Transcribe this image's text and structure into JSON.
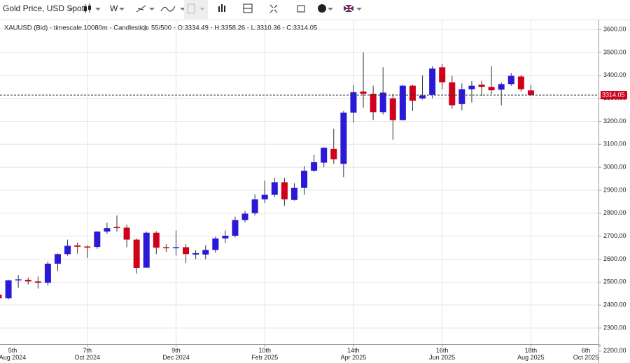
{
  "toolbar": {
    "instrument": "Gold Price, USD Spot",
    "interval": "W"
  },
  "info": {
    "series": "XAUUSD (Bid) - timescale.10080m - Candlestick",
    "quote": "55/500 - O:3334.49 - H:3358.26 - L:3310.36 - C:3314.05"
  },
  "chart_data": {
    "type": "candlestick",
    "up_color": "#2a1ad8",
    "down_color": "#d0021b",
    "x": [
      "2024-08-05",
      "2024-08-12",
      "2024-08-19",
      "2024-08-26",
      "2024-09-02",
      "2024-09-09",
      "2024-09-16",
      "2024-09-23",
      "2024-09-30",
      "2024-10-07",
      "2024-10-14",
      "2024-10-21",
      "2024-10-28",
      "2024-11-04",
      "2024-11-11",
      "2024-11-18",
      "2024-11-25",
      "2024-12-02",
      "2024-12-09",
      "2024-12-16",
      "2024-12-23",
      "2024-12-30",
      "2025-01-06",
      "2025-01-13",
      "2025-01-20",
      "2025-01-27",
      "2025-02-03",
      "2025-02-10",
      "2025-02-17",
      "2025-02-24",
      "2025-03-03",
      "2025-03-10",
      "2025-03-17",
      "2025-03-24",
      "2025-03-31",
      "2025-04-07",
      "2025-04-14",
      "2025-04-21",
      "2025-04-28",
      "2025-05-05",
      "2025-05-12",
      "2025-05-19",
      "2025-05-26",
      "2025-06-02",
      "2025-06-09",
      "2025-06-16",
      "2025-06-23",
      "2025-06-30",
      "2025-07-07",
      "2025-07-14",
      "2025-07-21",
      "2025-07-28",
      "2025-08-04",
      "2025-08-11",
      "2025-08-18"
    ],
    "open": [
      2445,
      2430,
      2508,
      2510,
      2503,
      2497,
      2580,
      2622,
      2660,
      2655,
      2653,
      2720,
      2740,
      2737,
      2685,
      2563,
      2715,
      2652,
      2648,
      2652,
      2620,
      2620,
      2640,
      2690,
      2702,
      2770,
      2800,
      2860,
      2880,
      2935,
      2858,
      2910,
      2985,
      3020,
      3080,
      3015,
      3238,
      3330,
      3320,
      3240,
      3300,
      3205,
      3355,
      3300,
      3315,
      3435,
      3370,
      3275,
      3340,
      3360,
      3350,
      3338,
      3362,
      3395,
      3334.49
    ],
    "high": [
      2450,
      2510,
      2531,
      2520,
      2525,
      2590,
      2625,
      2685,
      2672,
      2660,
      2722,
      2758,
      2790,
      2750,
      2690,
      2720,
      2722,
      2665,
      2725,
      2665,
      2640,
      2660,
      2698,
      2725,
      2785,
      2810,
      2882,
      2942,
      2955,
      2955,
      2930,
      3005,
      3055,
      3087,
      3168,
      3245,
      3358,
      3500,
      3355,
      3435,
      3320,
      3360,
      3360,
      3400,
      3440,
      3450,
      3398,
      3365,
      3375,
      3377,
      3440,
      3370,
      3410,
      3402,
      3358.26
    ],
    "low": [
      2425,
      2425,
      2475,
      2490,
      2472,
      2485,
      2548,
      2615,
      2624,
      2605,
      2645,
      2710,
      2720,
      2652,
      2537,
      2563,
      2622,
      2632,
      2616,
      2583,
      2600,
      2600,
      2628,
      2670,
      2695,
      2760,
      2790,
      2845,
      2870,
      2832,
      2855,
      2880,
      2980,
      3000,
      3015,
      2957,
      3195,
      3260,
      3205,
      3230,
      3120,
      3205,
      3245,
      3295,
      3300,
      3340,
      3255,
      3248,
      3282,
      3310,
      3320,
      3270,
      3355,
      3330,
      3310.36
    ],
    "close": [
      2430,
      2508,
      2512,
      2503,
      2497,
      2580,
      2622,
      2658,
      2654,
      2652,
      2720,
      2735,
      2737,
      2685,
      2562,
      2715,
      2650,
      2648,
      2652,
      2622,
      2626,
      2640,
      2690,
      2702,
      2770,
      2798,
      2860,
      2880,
      2935,
      2860,
      2910,
      2985,
      3022,
      3085,
      3035,
      3238,
      3327,
      3320,
      3240,
      3325,
      3205,
      3355,
      3290,
      3312,
      3430,
      3370,
      3270,
      3340,
      3355,
      3350,
      3335,
      3362,
      3398,
      3340,
      3314.05
    ],
    "xlim": [
      "2024-08-06",
      "2025-10-05"
    ],
    "xticks": [
      {
        "value": "2024-08-05",
        "label": "5th Aug 2024"
      },
      {
        "value": "2024-10-07",
        "label": "7th Oct 2024"
      },
      {
        "value": "2024-12-09",
        "label": "9th Dec 2024"
      },
      {
        "value": "2025-02-10",
        "label": "10th Feb 2025"
      },
      {
        "value": "2025-04-14",
        "label": "14th Apr 2025"
      },
      {
        "value": "2025-06-16",
        "label": "16th Jun 2025"
      },
      {
        "value": "2025-08-18",
        "label": "18th Aug 2025"
      },
      {
        "value": "2025-10-06",
        "label": "6th Oct 2025"
      }
    ],
    "ylim": [
      2230,
      3643
    ],
    "yticks": [
      {
        "value": 2200,
        "label": "2200.00"
      },
      {
        "value": 2300,
        "label": "2300.00"
      },
      {
        "value": 2400,
        "label": "2400.00"
      },
      {
        "value": 2500,
        "label": "2500.00"
      },
      {
        "value": 2600,
        "label": "2600.00"
      },
      {
        "value": 2700,
        "label": "2700.00"
      },
      {
        "value": 2800,
        "label": "2800.00"
      },
      {
        "value": 2900,
        "label": "2900.00"
      },
      {
        "value": 3000,
        "label": "3000.00"
      },
      {
        "value": 3100,
        "label": "3100.00"
      },
      {
        "value": 3200,
        "label": "3200.00"
      },
      {
        "value": 3300,
        "label": "3300.00"
      },
      {
        "value": 3400,
        "label": "3400.00"
      },
      {
        "value": 3500,
        "label": "3500.00"
      },
      {
        "value": 3600,
        "label": "3600.00"
      }
    ],
    "grid": true,
    "last_price": 3314.05
  }
}
